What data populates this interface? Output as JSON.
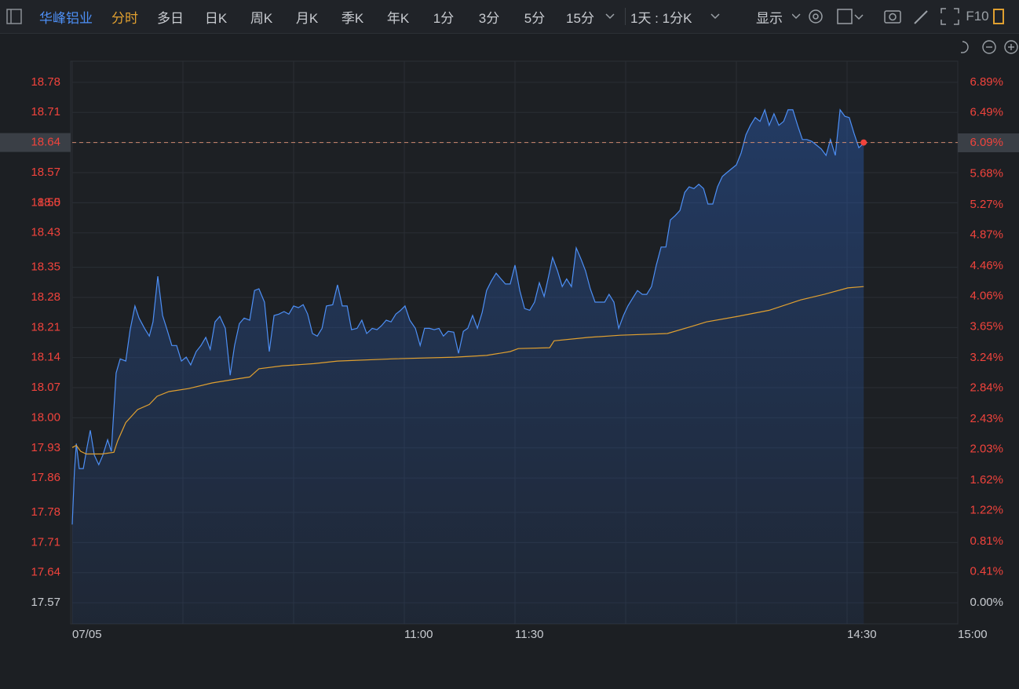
{
  "toolbar": {
    "stock": "华峰铝业",
    "tabs": [
      "分时",
      "多日",
      "日K",
      "周K",
      "月K",
      "季K",
      "年K",
      "1分",
      "3分",
      "5分",
      "15分"
    ],
    "period": "1天 : 1分K",
    "display": "显示",
    "f10": "F10"
  },
  "chart_data": {
    "type": "line",
    "xlim": [
      0,
      240
    ],
    "xticks": [
      {
        "value": 0,
        "label": "07/05"
      },
      {
        "value": 30,
        "label": null
      },
      {
        "value": 60,
        "label": null
      },
      {
        "value": 90,
        "label": "11:00"
      },
      {
        "value": 120,
        "label": "11:30"
      },
      {
        "value": 150,
        "label": null
      },
      {
        "value": 180,
        "label": null
      },
      {
        "value": 210,
        "label": "14:30"
      },
      {
        "value": 240,
        "label": "15:00"
      }
    ],
    "ylim": [
      17.521,
      18.829
    ],
    "yticks": [
      18.78,
      18.71,
      18.64,
      18.57,
      18.5,
      {
        "value": 18.5,
        "label": "18.50"
      },
      18.43,
      18.35,
      18.28,
      18.21,
      18.14,
      18.07,
      {
        "value": 18.0,
        "label": "18.00"
      },
      17.93,
      17.86,
      17.78,
      17.71,
      17.64,
      17.57
    ],
    "y2lim": [
      -0.281,
      7.171
    ],
    "y2ticks": [
      {
        "value": 6.89,
        "label": "6.89%"
      },
      {
        "value": 6.49,
        "label": "6.49%"
      },
      {
        "value": 6.09,
        "label": "6.09%"
      },
      {
        "value": 5.68,
        "label": "5.68%"
      },
      {
        "value": 5.27,
        "label": "5.27%"
      },
      {
        "value": 4.87,
        "label": "4.87%"
      },
      {
        "value": 4.46,
        "label": "4.46%"
      },
      {
        "value": 4.06,
        "label": "4.06%"
      },
      {
        "value": 3.65,
        "label": "3.65%"
      },
      {
        "value": 3.24,
        "label": "3.24%"
      },
      {
        "value": 2.84,
        "label": "2.84%"
      },
      {
        "value": 2.43,
        "label": "2.43%"
      },
      {
        "value": 2.03,
        "label": "2.03%"
      },
      {
        "value": 1.62,
        "label": "1.62%"
      },
      {
        "value": 1.22,
        "label": "1.22%"
      },
      {
        "value": 0.81,
        "label": "0.81%"
      },
      {
        "value": 0.41,
        "label": "0.41%"
      },
      {
        "value": 0.0,
        "label": "0.00%"
      }
    ],
    "grid": true,
    "current": 18.64,
    "series": [
      {
        "color": "#4d8ff5",
        "area": true,
        "x": [
          0,
          0.6,
          1.1,
          1.9,
          3.0,
          4.0,
          4.9,
          6.0,
          7.2,
          8.3,
          9.6,
          10.6,
          11.9,
          13.0,
          14.5,
          15.7,
          17.0,
          18.1,
          19.6,
          20.9,
          21.9,
          23.2,
          24.5,
          25.7,
          27.0,
          28.3,
          29.6,
          30.9,
          32.1,
          33.6,
          34.9,
          36.2,
          37.4,
          38.7,
          40.0,
          41.5,
          42.8,
          44.0,
          45.3,
          46.6,
          48.1,
          49.4,
          50.6,
          52.1,
          53.4,
          54.7,
          56.0,
          57.4,
          58.7,
          60.0,
          61.3,
          62.6,
          63.8,
          65.1,
          66.4,
          67.7,
          68.9,
          70.6,
          71.9,
          73.2,
          74.5,
          75.7,
          77.2,
          78.5,
          79.8,
          81.3,
          82.6,
          83.8,
          85.1,
          86.4,
          87.7,
          88.9,
          90.2,
          91.5,
          93.0,
          94.3,
          95.5,
          96.8,
          98.1,
          99.4,
          100.6,
          101.9,
          103.4,
          104.7,
          106.0,
          107.2,
          108.5,
          109.8,
          111.1,
          112.3,
          113.6,
          114.9,
          116.2,
          117.4,
          118.7,
          120.0,
          121.3,
          122.6,
          124.0,
          125.3,
          126.6,
          127.9,
          129.1,
          130.2,
          131.5,
          132.8,
          134.0,
          135.3,
          136.6,
          137.9,
          139.1,
          140.4,
          141.7,
          143.0,
          144.3,
          145.5,
          146.8,
          148.1,
          149.4,
          150.6,
          151.9,
          153.2,
          154.5,
          155.7,
          157.0,
          158.3,
          159.6,
          160.9,
          162.1,
          163.4,
          164.7,
          166.0,
          167.2,
          168.5,
          169.8,
          171.1,
          172.3,
          173.6,
          174.9,
          176.2,
          177.4,
          178.7,
          180.0,
          181.3,
          182.6,
          183.8,
          185.1,
          186.4,
          187.7,
          188.9,
          190.2,
          191.5,
          192.8,
          194.0,
          195.3,
          196.6,
          197.9,
          199.1,
          200.4,
          201.7,
          203.0,
          204.3,
          205.5,
          206.8,
          208.1,
          209.4,
          210.6,
          211.9,
          213.2,
          214.5
        ],
        "values": [
          17.752,
          17.876,
          17.94,
          17.882,
          17.882,
          17.931,
          17.971,
          17.913,
          17.891,
          17.913,
          17.949,
          17.922,
          18.104,
          18.137,
          18.132,
          18.205,
          18.26,
          18.232,
          18.208,
          18.19,
          18.223,
          18.329,
          18.238,
          18.205,
          18.168,
          18.168,
          18.132,
          18.141,
          18.123,
          18.154,
          18.168,
          18.187,
          18.159,
          18.223,
          18.236,
          18.208,
          18.099,
          18.168,
          18.219,
          18.232,
          18.227,
          18.296,
          18.3,
          18.269,
          18.154,
          18.238,
          18.241,
          18.247,
          18.241,
          18.26,
          18.256,
          18.263,
          18.241,
          18.196,
          18.19,
          18.208,
          18.26,
          18.263,
          18.309,
          18.26,
          18.26,
          18.205,
          18.208,
          18.227,
          18.196,
          18.208,
          18.205,
          18.214,
          18.227,
          18.223,
          18.241,
          18.249,
          18.26,
          18.227,
          18.208,
          18.168,
          18.208,
          18.208,
          18.205,
          18.208,
          18.19,
          18.201,
          18.199,
          18.15,
          18.201,
          18.208,
          18.238,
          18.208,
          18.245,
          18.296,
          18.318,
          18.336,
          18.323,
          18.311,
          18.311,
          18.355,
          18.296,
          18.254,
          18.25,
          18.269,
          18.314,
          18.282,
          18.329,
          18.373,
          18.342,
          18.305,
          18.323,
          18.305,
          18.395,
          18.369,
          18.342,
          18.3,
          18.269,
          18.269,
          18.269,
          18.287,
          18.269,
          18.208,
          18.238,
          18.26,
          18.278,
          18.296,
          18.287,
          18.287,
          18.305,
          18.355,
          18.397,
          18.397,
          18.46,
          18.47,
          18.482,
          18.524,
          18.537,
          18.533,
          18.543,
          18.533,
          18.497,
          18.497,
          18.537,
          18.561,
          18.57,
          18.579,
          18.588,
          18.616,
          18.658,
          18.68,
          18.698,
          18.689,
          18.716,
          18.68,
          18.707,
          18.68,
          18.689,
          18.716,
          18.716,
          18.68,
          18.647,
          18.647,
          18.643,
          18.634,
          18.625,
          18.61,
          18.647,
          18.61,
          18.716,
          18.701,
          18.698,
          18.661,
          18.628,
          18.638
        ]
      },
      {
        "color": "#e0a030",
        "area": false,
        "x": [
          0,
          1.1,
          2.3,
          3.8,
          8.1,
          11.3,
          12.3,
          14.5,
          17.7,
          20.9,
          23.0,
          26.2,
          31.5,
          37.9,
          44.3,
          48.1,
          50.6,
          57.0,
          65.5,
          71.9,
          86.8,
          103.8,
          112.3,
          118.7,
          120.9,
          129.4,
          130.6,
          140.0,
          148.5,
          161.3,
          167.7,
          171.9,
          180.4,
          188.9,
          197.4,
          203.8,
          210.2,
          214.5
        ],
        "values": [
          17.931,
          17.936,
          17.922,
          17.916,
          17.916,
          17.92,
          17.946,
          17.989,
          18.019,
          18.031,
          18.05,
          18.061,
          18.068,
          18.081,
          18.09,
          18.095,
          18.114,
          18.121,
          18.126,
          18.132,
          18.137,
          18.141,
          18.145,
          18.154,
          18.161,
          18.163,
          18.179,
          18.187,
          18.192,
          18.196,
          18.212,
          18.223,
          18.236,
          18.25,
          18.274,
          18.287,
          18.302,
          18.305
        ]
      }
    ]
  }
}
